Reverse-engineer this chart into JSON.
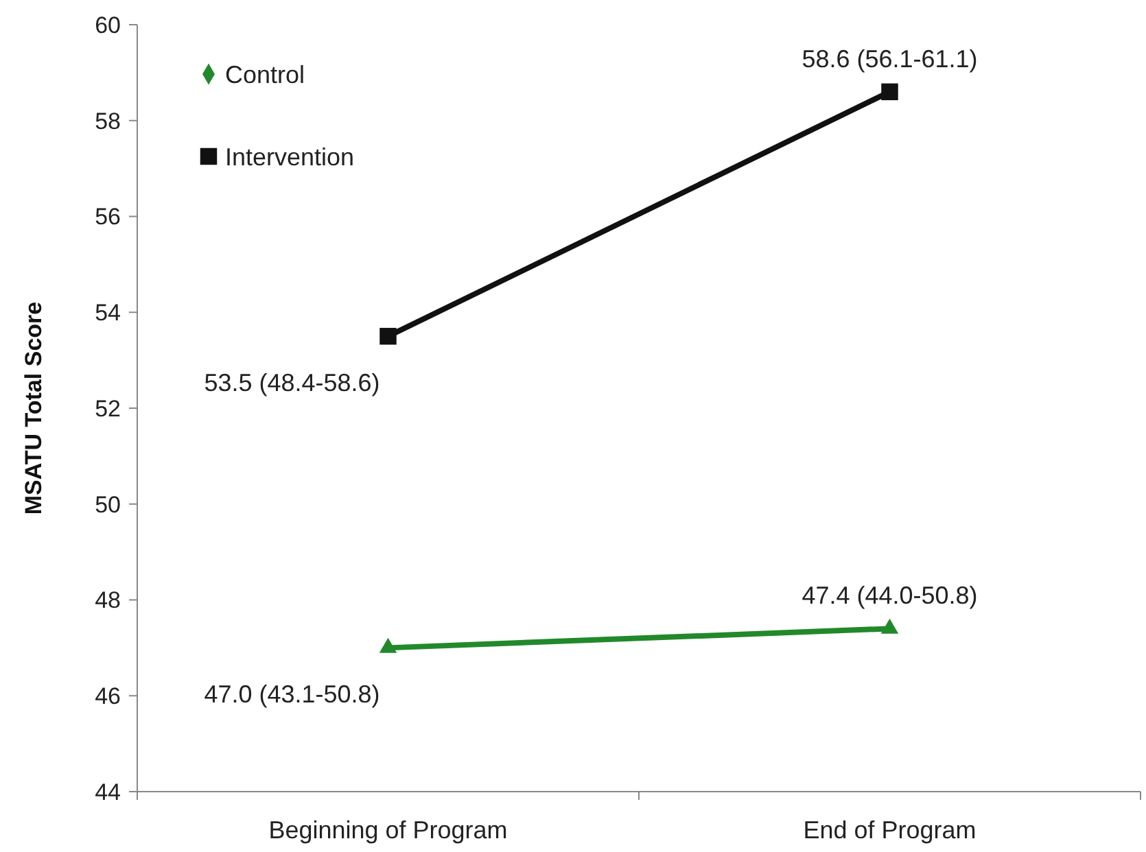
{
  "chart_data": {
    "type": "line",
    "ylabel": "MSATU Total Score",
    "categories": [
      "Beginning of Program",
      "End of Program"
    ],
    "ylim": [
      44,
      60
    ],
    "yticks": [
      44,
      46,
      48,
      50,
      52,
      54,
      56,
      58,
      60
    ],
    "grid": false,
    "legend": "top left",
    "series": [
      {
        "name": "Control",
        "color": "#22892b",
        "marker": "triangle",
        "values": [
          47.0,
          47.4
        ],
        "value_labels": [
          "47.0 (43.1-50.8)",
          "47.4 (44.0-50.8)"
        ]
      },
      {
        "name": "Intervention",
        "color": "#111111",
        "marker": "square",
        "values": [
          53.5,
          58.6
        ],
        "value_labels": [
          "53.5 (48.4-58.6)",
          "58.6 (56.1-61.1)"
        ]
      }
    ]
  }
}
